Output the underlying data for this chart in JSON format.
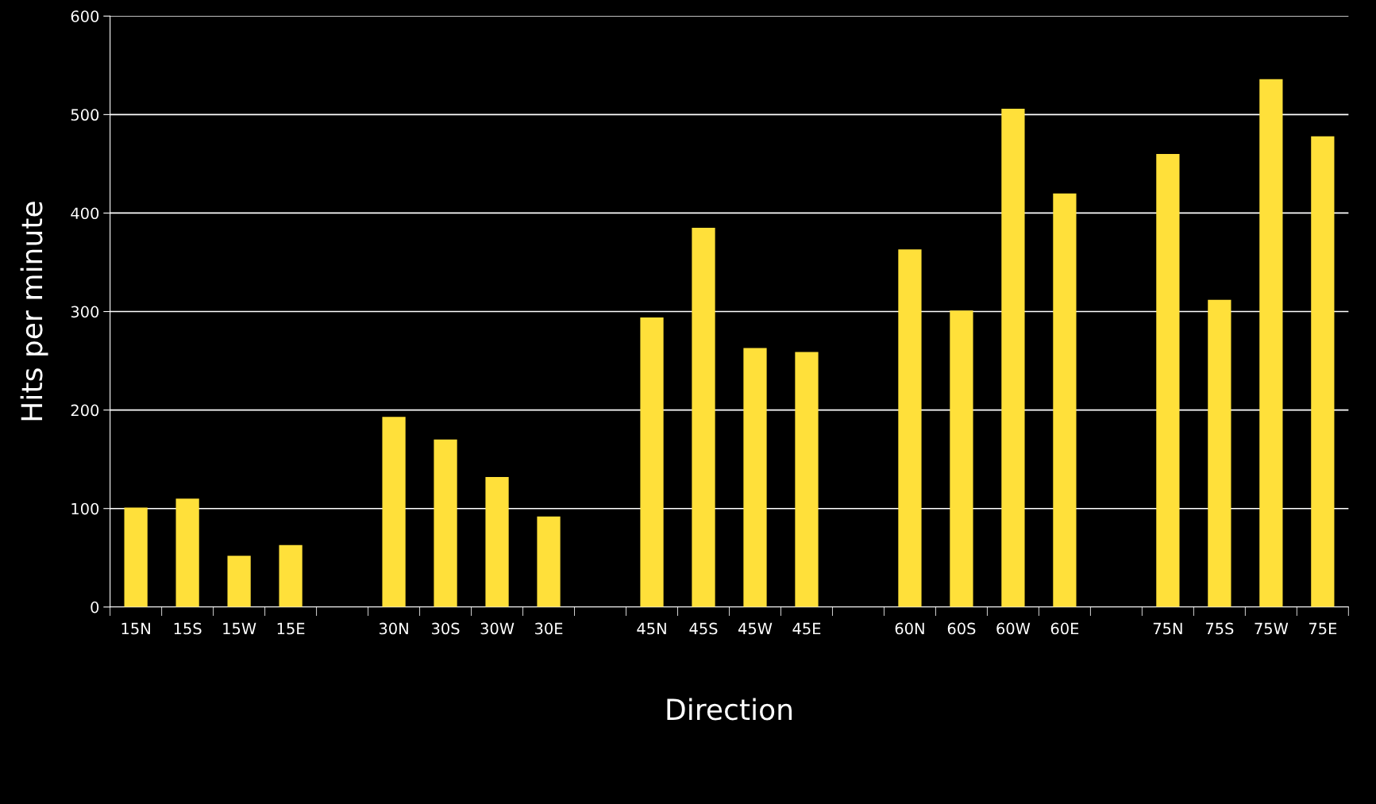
{
  "chart_data": {
    "type": "bar",
    "xlabel": "Direction",
    "ylabel": "Hits per minute",
    "categories": [
      "15N",
      "15S",
      "15W",
      "15E",
      null,
      "30N",
      "30S",
      "30W",
      "30E",
      null,
      "45N",
      "45S",
      "45W",
      "45E",
      null,
      "60N",
      "60S",
      "60W",
      "60E",
      null,
      "75N",
      "75S",
      "75W",
      "75E"
    ],
    "values": [
      101,
      110,
      52,
      63,
      null,
      193,
      170,
      132,
      92,
      null,
      294,
      385,
      263,
      259,
      null,
      363,
      301,
      506,
      420,
      null,
      460,
      312,
      536,
      478
    ],
    "color": "#ffe03a",
    "ylim": [
      0,
      600
    ],
    "yticks": [
      0,
      100,
      200,
      300,
      400,
      500,
      600
    ],
    "grid": "y",
    "legend": false
  }
}
